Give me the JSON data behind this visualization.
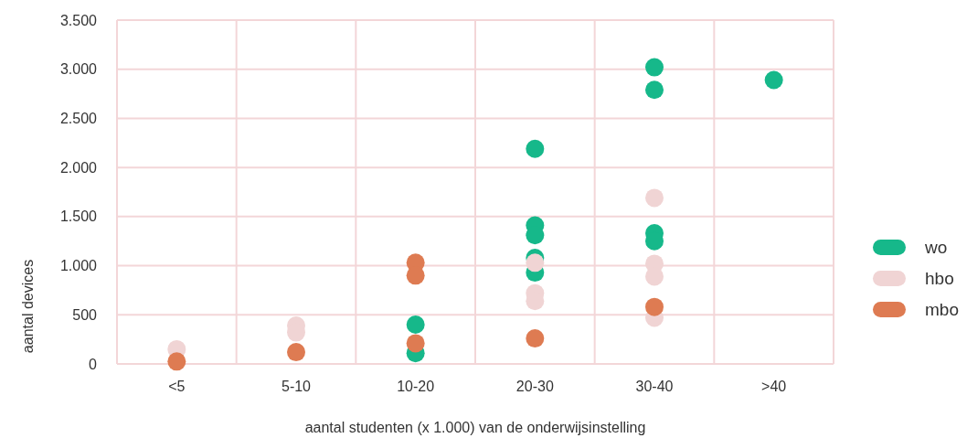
{
  "chart_data": {
    "type": "scatter",
    "xlabel": "aantal studenten (x 1.000) van  de onderwijsinstelling",
    "ylabel": "aantal devices",
    "categories": [
      "<5",
      "5-10",
      "10-20",
      "20-30",
      "30-40",
      ">40"
    ],
    "ylim": [
      0,
      3500
    ],
    "yticks": [
      0,
      500,
      {
        "value": 1000,
        "label": "1.000"
      },
      {
        "value": 1500,
        "label": "1.500"
      },
      {
        "value": 2000,
        "label": "2.000"
      },
      {
        "value": 2500,
        "label": "2.500"
      },
      {
        "value": 3000,
        "label": "3.000"
      },
      {
        "value": 3500,
        "label": "3.500"
      }
    ],
    "grid": true,
    "legend": "right",
    "marker": "circle",
    "series": [
      {
        "name": "wo",
        "color": "#16b88a",
        "x": [
          "10-20",
          "10-20",
          "20-30",
          "20-30",
          "20-30",
          "20-30",
          "20-30",
          "30-40",
          "30-40",
          "30-40",
          "30-40",
          ">40"
        ],
        "values": [
          400,
          110,
          2190,
          1410,
          1310,
          1080,
          930,
          3020,
          2790,
          1330,
          1250,
          2890
        ]
      },
      {
        "name": "hbo",
        "color": "#f0d4d4",
        "x": [
          "<5",
          "5-10",
          "5-10",
          "20-30",
          "20-30",
          "20-30",
          "30-40",
          "30-40",
          "30-40",
          "30-40"
        ],
        "values": [
          150,
          390,
          320,
          1030,
          720,
          640,
          1690,
          1020,
          890,
          470
        ]
      },
      {
        "name": "mbo",
        "color": "#de7b52",
        "x": [
          "<5",
          "5-10",
          "10-20",
          "10-20",
          "10-20",
          "20-30",
          "30-40"
        ],
        "values": [
          25,
          120,
          1030,
          900,
          210,
          260,
          580
        ]
      }
    ]
  }
}
